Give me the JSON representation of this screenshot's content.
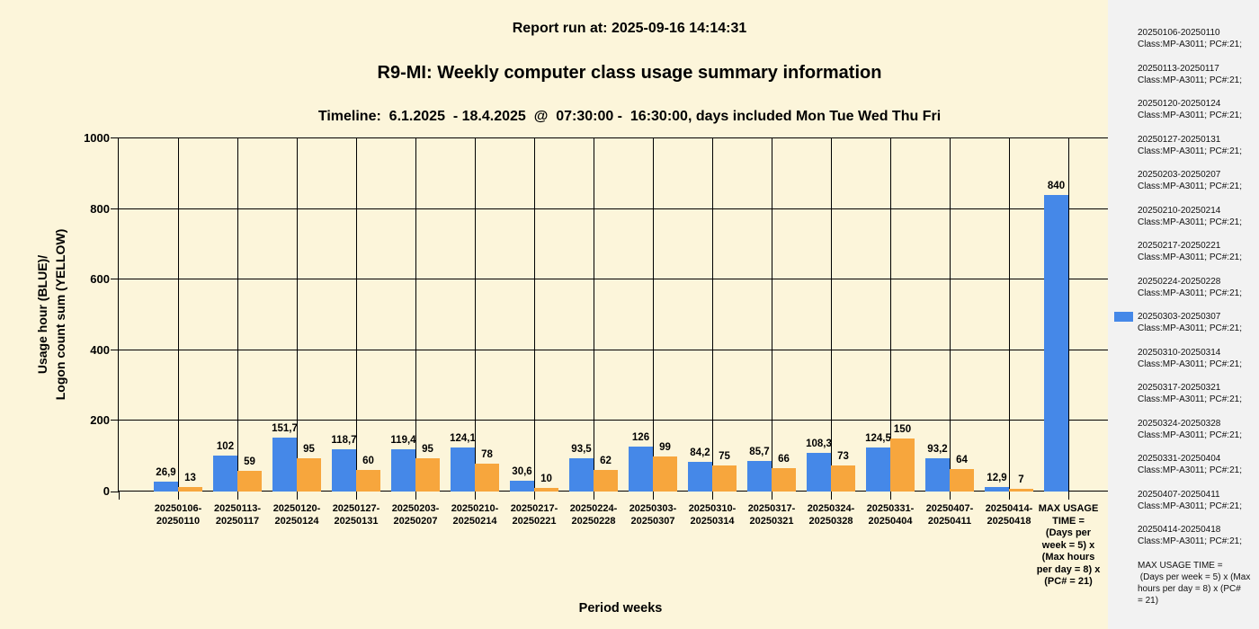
{
  "header": {
    "report_run_at": "Report run at: 2025-09-16 14:14:31",
    "title": "R9-MI: Weekly computer class usage summary information",
    "timeline": "Timeline:  6.1.2025  - 18.4.2025  @  07:30:00 -  16:30:00, days included Mon Tue Wed Thu Fri"
  },
  "colors": {
    "background": "#FCF5DA",
    "legend_background": "#F2F2F2",
    "bar_blue": "#4588E8",
    "bar_orange": "#F7A63D",
    "grid_line": "#000000"
  },
  "chart_data": {
    "type": "bar",
    "title": "R9-MI: Weekly computer class usage summary information",
    "xlabel": "Period weeks",
    "ylabel_lines": [
      "Usage hour (BLUE)/",
      "Logon count sum (YELLOW)"
    ],
    "ylim": [
      0,
      1000
    ],
    "yticks": [
      0,
      200,
      400,
      600,
      800,
      1000
    ],
    "grid": "on",
    "legend_position": "right",
    "decimal_separator": ",",
    "categories": [
      "20250106-20250110",
      "20250113-20250117",
      "20250120-20250124",
      "20250127-20250131",
      "20250203-20250207",
      "20250210-20250214",
      "20250217-20250221",
      "20250224-20250228",
      "20250303-20250307",
      "20250310-20250314",
      "20250317-20250321",
      "20250324-20250328",
      "20250331-20250404",
      "20250407-20250411",
      "20250414-20250418",
      "MAX USAGE TIME"
    ],
    "category_axis_lines": [
      [
        "20250106-",
        "20250110"
      ],
      [
        "20250113-",
        "20250117"
      ],
      [
        "20250120-",
        "20250124"
      ],
      [
        "20250127-",
        "20250131"
      ],
      [
        "20250203-",
        "20250207"
      ],
      [
        "20250210-",
        "20250214"
      ],
      [
        "20250217-",
        "20250221"
      ],
      [
        "20250224-",
        "20250228"
      ],
      [
        "20250303-",
        "20250307"
      ],
      [
        "20250310-",
        "20250314"
      ],
      [
        "20250317-",
        "20250321"
      ],
      [
        "20250324-",
        "20250328"
      ],
      [
        "20250331-",
        "20250404"
      ],
      [
        "20250407-",
        "20250411"
      ],
      [
        "20250414-",
        "20250418"
      ],
      [
        "MAX USAGE",
        "TIME =",
        "(Days per",
        "week = 5) x",
        "(Max hours",
        "per day = 8) x",
        "(PC# = 21)"
      ]
    ],
    "series": [
      {
        "name": "Usage hour",
        "color": "#4588E8",
        "values": [
          26.9,
          102,
          151.7,
          118.7,
          119.4,
          124.1,
          30.6,
          93.5,
          126,
          84.2,
          85.7,
          108.3,
          124.5,
          93.2,
          12.9,
          840
        ]
      },
      {
        "name": "Logon count sum",
        "color": "#F7A63D",
        "values": [
          13,
          59,
          95,
          60,
          95,
          78,
          10,
          62,
          99,
          75,
          66,
          73,
          150,
          64,
          7,
          null
        ]
      }
    ]
  },
  "legend": {
    "items": [
      {
        "period": "20250106-20250110",
        "class_line": "Class:MP-A3011; PC#:21;",
        "marker": false
      },
      {
        "period": "20250113-20250117",
        "class_line": "Class:MP-A3011; PC#:21;",
        "marker": false
      },
      {
        "period": "20250120-20250124",
        "class_line": "Class:MP-A3011; PC#:21;",
        "marker": false
      },
      {
        "period": "20250127-20250131",
        "class_line": "Class:MP-A3011; PC#:21;",
        "marker": false
      },
      {
        "period": "20250203-20250207",
        "class_line": "Class:MP-A3011; PC#:21;",
        "marker": false
      },
      {
        "period": "20250210-20250214",
        "class_line": "Class:MP-A3011; PC#:21;",
        "marker": false
      },
      {
        "period": "20250217-20250221",
        "class_line": "Class:MP-A3011; PC#:21;",
        "marker": false
      },
      {
        "period": "20250224-20250228",
        "class_line": "Class:MP-A3011; PC#:21;",
        "marker": false
      },
      {
        "period": "20250303-20250307",
        "class_line": "Class:MP-A3011; PC#:21;",
        "marker": true
      },
      {
        "period": "20250310-20250314",
        "class_line": "Class:MP-A3011; PC#:21;",
        "marker": false
      },
      {
        "period": "20250317-20250321",
        "class_line": "Class:MP-A3011; PC#:21;",
        "marker": false
      },
      {
        "period": "20250324-20250328",
        "class_line": "Class:MP-A3011; PC#:21;",
        "marker": false
      },
      {
        "period": "20250331-20250404",
        "class_line": "Class:MP-A3011; PC#:21;",
        "marker": false
      },
      {
        "period": "20250407-20250411",
        "class_line": "Class:MP-A3011; PC#:21;",
        "marker": false
      },
      {
        "period": "20250414-20250418",
        "class_line": "Class:MP-A3011; PC#:21;",
        "marker": false
      }
    ],
    "max_usage_note_lines": [
      "MAX USAGE TIME =",
      " (Days per week = 5) x (Max",
      "hours per day = 8) x (PC#",
      "= 21)"
    ]
  }
}
